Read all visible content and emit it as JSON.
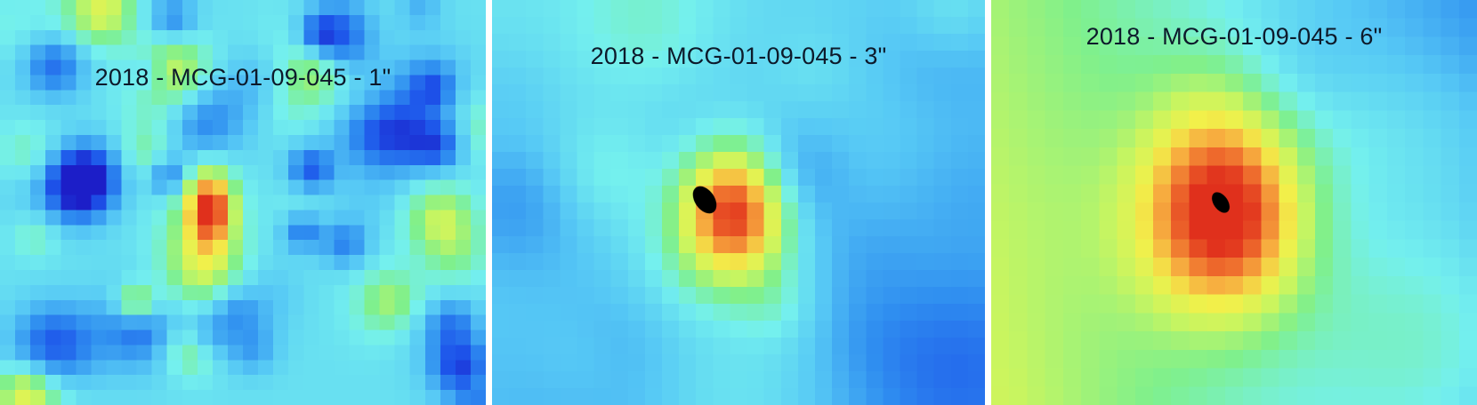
{
  "panels": [
    {
      "title": "2018 - MCG-01-09-045 - 1\"",
      "image_name": "x-ray-count-map-1-arcsec",
      "colormap": [
        "#1c1ec8",
        "#1d54ea",
        "#2f8ef0",
        "#56c8f5",
        "#74f0ee",
        "#7ff08c",
        "#c8f560",
        "#f2f04a",
        "#f7b040",
        "#ee6a2c",
        "#e0301c"
      ]
    },
    {
      "title": "2018 - MCG-01-09-045 - 3\"",
      "image_name": "x-ray-count-map-3-arcsec",
      "colormap": [
        "#1c1ec8",
        "#1d54ea",
        "#2f8ef0",
        "#56c8f5",
        "#74f0ee",
        "#7ff08c",
        "#c8f560",
        "#f2f04a",
        "#f7b040",
        "#ee6a2c",
        "#e0301c"
      ]
    },
    {
      "title": "2018 - MCG-01-09-045 - 6\"",
      "image_name": "x-ray-count-map-6-arcsec",
      "colormap": [
        "#1c1ec8",
        "#1d54ea",
        "#2f8ef0",
        "#56c8f5",
        "#74f0ee",
        "#7ff08c",
        "#c8f560",
        "#f2f04a",
        "#f7b040",
        "#ee6a2c",
        "#e0301c"
      ]
    }
  ]
}
